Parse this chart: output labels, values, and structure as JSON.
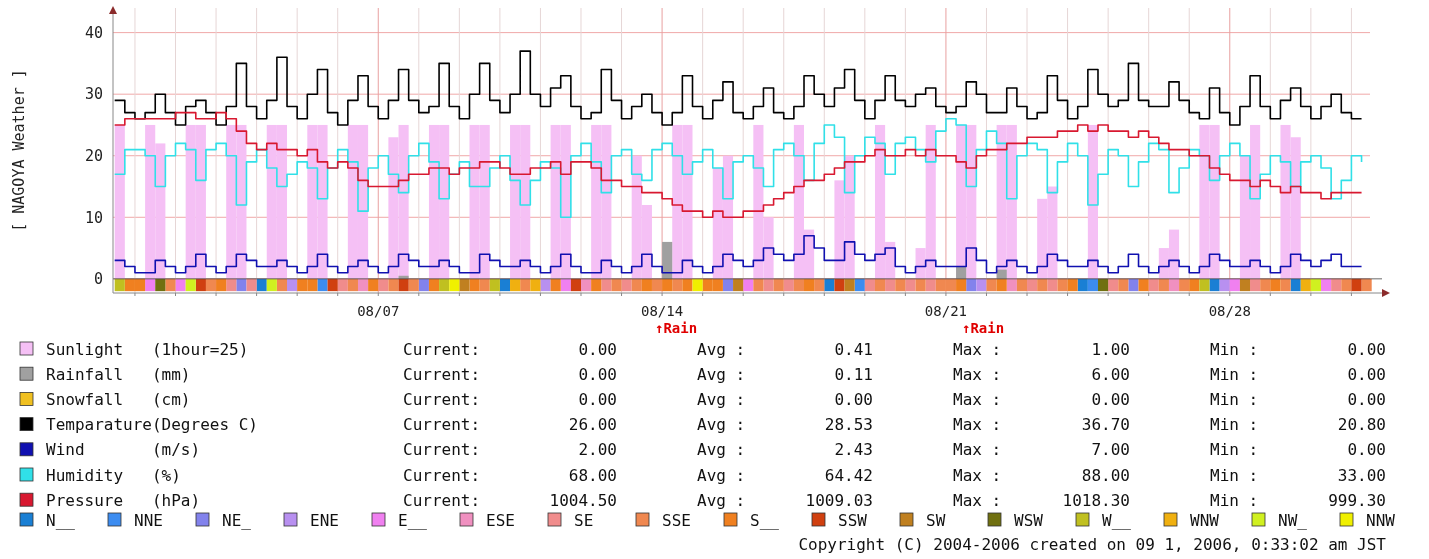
{
  "chart_data": {
    "type": "step",
    "ylabel": "[ NAGOYA Weather ]",
    "xlim": [
      "2006-07-31T11:00",
      "2006-08-31T11:00"
    ],
    "ylim": [
      -2.3,
      44
    ],
    "yticks": [
      0,
      10,
      20,
      30,
      40
    ],
    "xticks": [
      {
        "value": "2006-08-01",
        "label": null
      },
      {
        "value": "2006-08-02",
        "label": null
      },
      {
        "value": "2006-08-03",
        "label": null
      },
      {
        "value": "2006-08-04",
        "label": null
      },
      {
        "value": "2006-08-05",
        "label": null
      },
      {
        "value": "2006-08-06",
        "label": null
      },
      {
        "value": "2006-08-07",
        "label": "08/07"
      },
      {
        "value": "2006-08-08",
        "label": null
      },
      {
        "value": "2006-08-09",
        "label": null
      },
      {
        "value": "2006-08-10",
        "label": null
      },
      {
        "value": "2006-08-11",
        "label": null
      },
      {
        "value": "2006-08-12",
        "label": null
      },
      {
        "value": "2006-08-13",
        "label": null
      },
      {
        "value": "2006-08-14",
        "label": "08/14"
      },
      {
        "value": "2006-08-15",
        "label": null
      },
      {
        "value": "2006-08-16",
        "label": null
      },
      {
        "value": "2006-08-17",
        "label": null
      },
      {
        "value": "2006-08-18",
        "label": null
      },
      {
        "value": "2006-08-19",
        "label": null
      },
      {
        "value": "2006-08-20",
        "label": null
      },
      {
        "value": "2006-08-21",
        "label": "08/21"
      },
      {
        "value": "2006-08-22",
        "label": null
      },
      {
        "value": "2006-08-23",
        "label": null
      },
      {
        "value": "2006-08-24",
        "label": null
      },
      {
        "value": "2006-08-25",
        "label": null
      },
      {
        "value": "2006-08-26",
        "label": null
      },
      {
        "value": "2006-08-27",
        "label": null
      },
      {
        "value": "2006-08-28",
        "label": "08/28"
      },
      {
        "value": "2006-08-29",
        "label": null
      },
      {
        "value": "2006-08-30",
        "label": null
      },
      {
        "value": "2006-08-31",
        "label": null
      }
    ],
    "grid": true,
    "legend": "bottom",
    "x": [
      "2006-07-31T12:00",
      "2006-07-31T18:00",
      "2006-08-01T00:00",
      "2006-08-01T06:00",
      "2006-08-01T12:00",
      "2006-08-01T18:00",
      "2006-08-02T00:00",
      "2006-08-02T06:00",
      "2006-08-02T12:00",
      "2006-08-02T18:00",
      "2006-08-03T00:00",
      "2006-08-03T06:00",
      "2006-08-03T12:00",
      "2006-08-03T18:00",
      "2006-08-04T00:00",
      "2006-08-04T06:00",
      "2006-08-04T12:00",
      "2006-08-04T18:00",
      "2006-08-05T00:00",
      "2006-08-05T06:00",
      "2006-08-05T12:00",
      "2006-08-05T18:00",
      "2006-08-06T00:00",
      "2006-08-06T06:00",
      "2006-08-06T12:00",
      "2006-08-06T18:00",
      "2006-08-07T00:00",
      "2006-08-07T06:00",
      "2006-08-07T12:00",
      "2006-08-07T18:00",
      "2006-08-08T00:00",
      "2006-08-08T06:00",
      "2006-08-08T12:00",
      "2006-08-08T18:00",
      "2006-08-09T00:00",
      "2006-08-09T06:00",
      "2006-08-09T12:00",
      "2006-08-09T18:00",
      "2006-08-10T00:00",
      "2006-08-10T06:00",
      "2006-08-10T12:00",
      "2006-08-10T18:00",
      "2006-08-11T00:00",
      "2006-08-11T06:00",
      "2006-08-11T12:00",
      "2006-08-11T18:00",
      "2006-08-12T00:00",
      "2006-08-12T06:00",
      "2006-08-12T12:00",
      "2006-08-12T18:00",
      "2006-08-13T00:00",
      "2006-08-13T06:00",
      "2006-08-13T12:00",
      "2006-08-13T18:00",
      "2006-08-14T00:00",
      "2006-08-14T06:00",
      "2006-08-14T12:00",
      "2006-08-14T18:00",
      "2006-08-15T00:00",
      "2006-08-15T06:00",
      "2006-08-15T12:00",
      "2006-08-15T18:00",
      "2006-08-16T00:00",
      "2006-08-16T06:00",
      "2006-08-16T12:00",
      "2006-08-16T18:00",
      "2006-08-17T00:00",
      "2006-08-17T06:00",
      "2006-08-17T12:00",
      "2006-08-17T18:00",
      "2006-08-18T00:00",
      "2006-08-18T06:00",
      "2006-08-18T12:00",
      "2006-08-18T18:00",
      "2006-08-19T00:00",
      "2006-08-19T06:00",
      "2006-08-19T12:00",
      "2006-08-19T18:00",
      "2006-08-20T00:00",
      "2006-08-20T06:00",
      "2006-08-20T12:00",
      "2006-08-20T18:00",
      "2006-08-21T00:00",
      "2006-08-21T06:00",
      "2006-08-21T12:00",
      "2006-08-21T18:00",
      "2006-08-22T00:00",
      "2006-08-22T06:00",
      "2006-08-22T12:00",
      "2006-08-22T18:00",
      "2006-08-23T00:00",
      "2006-08-23T06:00",
      "2006-08-23T12:00",
      "2006-08-23T18:00",
      "2006-08-24T00:00",
      "2006-08-24T06:00",
      "2006-08-24T12:00",
      "2006-08-24T18:00",
      "2006-08-25T00:00",
      "2006-08-25T06:00",
      "2006-08-25T12:00",
      "2006-08-25T18:00",
      "2006-08-26T00:00",
      "2006-08-26T06:00",
      "2006-08-26T12:00",
      "2006-08-26T18:00",
      "2006-08-27T00:00",
      "2006-08-27T06:00",
      "2006-08-27T12:00",
      "2006-08-27T18:00",
      "2006-08-28T00:00",
      "2006-08-28T06:00",
      "2006-08-28T12:00",
      "2006-08-28T18:00",
      "2006-08-29T00:00",
      "2006-08-29T06:00",
      "2006-08-29T12:00",
      "2006-08-29T18:00",
      "2006-08-30T00:00",
      "2006-08-30T06:00",
      "2006-08-30T12:00",
      "2006-08-30T18:00",
      "2006-08-31T00:00",
      "2006-08-31T06:00"
    ],
    "series": [
      {
        "name": "Sunlight   (1hour=25)",
        "type": "bar",
        "color": "#f5c0f5",
        "values": [
          25,
          0,
          0,
          25,
          22,
          0,
          0,
          25,
          25,
          0,
          0,
          25,
          25,
          0,
          0,
          25,
          25,
          0,
          0,
          25,
          25,
          0,
          0,
          25,
          25,
          0,
          0,
          23,
          25,
          0,
          0,
          25,
          25,
          0,
          0,
          25,
          25,
          0,
          0,
          25,
          25,
          0,
          0,
          25,
          25,
          0,
          0,
          25,
          25,
          0,
          0,
          20,
          12,
          0,
          0,
          25,
          25,
          0,
          0,
          18,
          20,
          0,
          0,
          25,
          10,
          0,
          0,
          25,
          8,
          0,
          0,
          16,
          20,
          0,
          0,
          25,
          6,
          0,
          0,
          5,
          25,
          0,
          0,
          25,
          25,
          0,
          0,
          25,
          25,
          0,
          0,
          13,
          15,
          0,
          0,
          0,
          25,
          0,
          0,
          0,
          0,
          0,
          0,
          5,
          8,
          0,
          0,
          25,
          25,
          0,
          0,
          20,
          25,
          0,
          0,
          25,
          23,
          0,
          0,
          0,
          0,
          0,
          0,
          0
        ]
      },
      {
        "name": "Rainfall   (mm)",
        "type": "bar",
        "color": "#a0a0a0",
        "x": [
          "2006-08-07T12:00",
          "2006-08-14T00:00",
          "2006-08-21T06:00",
          "2006-08-22T06:00"
        ],
        "values": [
          0.5,
          6,
          2,
          1.5
        ]
      },
      {
        "name": "Snowfall   (cm)",
        "type": "bar",
        "color": "#f0c020",
        "values": [
          0,
          0,
          0,
          0,
          0,
          0,
          0,
          0,
          0,
          0,
          0,
          0,
          0,
          0,
          0,
          0,
          0,
          0,
          0,
          0,
          0,
          0,
          0,
          0,
          0,
          0,
          0,
          0,
          0,
          0,
          0,
          0,
          0,
          0,
          0,
          0,
          0,
          0,
          0,
          0,
          0,
          0,
          0,
          0,
          0,
          0,
          0,
          0,
          0,
          0,
          0,
          0,
          0,
          0,
          0,
          0,
          0,
          0,
          0,
          0,
          0,
          0,
          0,
          0,
          0,
          0,
          0,
          0,
          0,
          0,
          0,
          0,
          0,
          0,
          0,
          0,
          0,
          0,
          0,
          0,
          0,
          0,
          0,
          0,
          0,
          0,
          0,
          0,
          0,
          0,
          0,
          0,
          0,
          0,
          0,
          0,
          0,
          0,
          0,
          0,
          0,
          0,
          0,
          0,
          0,
          0,
          0,
          0,
          0,
          0,
          0,
          0,
          0,
          0,
          0,
          0,
          0,
          0,
          0,
          0,
          0,
          0,
          0,
          0
        ]
      },
      {
        "name": "Temparature(Degrees C)",
        "color": "#000000",
        "values": [
          29,
          27,
          26,
          27,
          30,
          27,
          25,
          28,
          29,
          27,
          25,
          28,
          35,
          28,
          26,
          29,
          36,
          28,
          26,
          30,
          34,
          27,
          25,
          29,
          33,
          28,
          26,
          29,
          34,
          29,
          27,
          28,
          35,
          28,
          26,
          30,
          35,
          29,
          27,
          30,
          37,
          30,
          28,
          31,
          33,
          28,
          26,
          27,
          34,
          29,
          26,
          28,
          30,
          27,
          25,
          27,
          33,
          28,
          26,
          29,
          32,
          27,
          26,
          28,
          31,
          27,
          26,
          28,
          33,
          30,
          28,
          31,
          34,
          29,
          26,
          29,
          33,
          29,
          28,
          30,
          31,
          28,
          27,
          28,
          32,
          30,
          27,
          27,
          31,
          28,
          26,
          27,
          33,
          29,
          26,
          28,
          34,
          30,
          28,
          29,
          35,
          29,
          28,
          28,
          32,
          29,
          27,
          26,
          31,
          27,
          25,
          28,
          33,
          28,
          26,
          29,
          31,
          28,
          26,
          28,
          30,
          27,
          26,
          26
        ]
      },
      {
        "name": "Wind       (m/s)",
        "color": "#1010b0",
        "values": [
          3,
          2,
          1,
          1,
          3,
          2,
          1,
          2,
          4,
          2,
          1,
          2,
          4,
          3,
          2,
          2,
          3,
          2,
          1,
          2,
          4,
          2,
          1,
          2,
          3,
          2,
          1,
          2,
          4,
          3,
          2,
          2,
          3,
          2,
          1,
          1,
          4,
          3,
          2,
          2,
          3,
          2,
          1,
          2,
          4,
          2,
          1,
          1,
          3,
          2,
          1,
          2,
          4,
          2,
          1,
          1,
          3,
          2,
          1,
          2,
          4,
          3,
          2,
          3,
          5,
          4,
          3,
          4,
          7,
          5,
          3,
          3,
          6,
          4,
          3,
          4,
          5,
          2,
          1,
          2,
          3,
          2,
          2,
          2,
          5,
          3,
          1,
          2,
          3,
          2,
          1,
          2,
          4,
          3,
          2,
          2,
          3,
          2,
          1,
          2,
          4,
          2,
          1,
          2,
          3,
          2,
          1,
          2,
          4,
          3,
          2,
          2,
          3,
          2,
          1,
          2,
          4,
          3,
          2,
          3,
          4,
          2,
          2,
          2
        ]
      },
      {
        "name": "Humidity   (%)",
        "color": "#30e0e8",
        "values": [
          17,
          21,
          21,
          20,
          15,
          20,
          22,
          21,
          16,
          21,
          22,
          20,
          12,
          19,
          21,
          18,
          15,
          17,
          19,
          18,
          13,
          18,
          21,
          19,
          11,
          18,
          20,
          17,
          14,
          20,
          22,
          19,
          13,
          17,
          19,
          15,
          15,
          18,
          20,
          16,
          12,
          16,
          19,
          18,
          10,
          20,
          22,
          19,
          14,
          20,
          21,
          17,
          16,
          21,
          22,
          20,
          17,
          19,
          21,
          18,
          13,
          19,
          20,
          18,
          15,
          21,
          22,
          20,
          16,
          22,
          25,
          23,
          14,
          20,
          23,
          22,
          17,
          22,
          23,
          21,
          19,
          24,
          26,
          25,
          15,
          21,
          24,
          22,
          13,
          20,
          22,
          21,
          14,
          19,
          22,
          20,
          12,
          17,
          21,
          20,
          15,
          19,
          22,
          21,
          14,
          18,
          21,
          20,
          16,
          20,
          22,
          20,
          13,
          17,
          20,
          19,
          15,
          19,
          20,
          18,
          13,
          16,
          20,
          19
        ]
      },
      {
        "name": "Pressure   (hPa)",
        "color": "#d81830",
        "values": [
          25,
          26,
          26,
          26,
          26,
          26,
          27,
          27,
          26,
          26,
          27,
          26,
          24,
          22,
          21,
          22,
          21,
          21,
          20,
          21,
          19,
          18,
          19,
          18,
          16,
          15,
          15,
          15,
          16,
          17,
          17,
          18,
          18,
          17,
          18,
          18,
          19,
          19,
          18,
          17,
          17,
          18,
          18,
          19,
          17,
          19,
          19,
          18,
          16,
          16,
          15,
          15,
          14,
          14,
          13,
          12,
          11,
          11,
          10,
          11,
          10,
          10,
          11,
          11,
          12,
          13,
          14,
          15,
          16,
          16,
          17,
          18,
          19,
          19,
          20,
          21,
          20,
          20,
          21,
          20,
          21,
          20,
          20,
          19,
          18,
          20,
          21,
          21,
          22,
          22,
          23,
          23,
          23,
          24,
          24,
          25,
          24,
          25,
          24,
          24,
          23,
          24,
          23,
          22,
          21,
          21,
          20,
          20,
          18,
          17,
          16,
          16,
          15,
          16,
          15,
          14,
          15,
          14,
          14,
          13,
          14,
          14,
          14,
          14
        ]
      },
      {
        "name": "N__",
        "type": "bar",
        "color": "#1a7fd4",
        "x": [
          "2006-08-04T00:00",
          "2006-08-10T00:00",
          "2006-08-18T00:00",
          "2006-08-24T06:00",
          "2006-08-27T12:00",
          "2006-08-29T12:00"
        ],
        "values": [
          -2,
          -2,
          -2,
          -2,
          -2,
          -2
        ]
      },
      {
        "name": "NNE",
        "type": "bar",
        "color": "#3c8cf0",
        "x": [
          "2006-08-05T12:00",
          "2006-08-18T18:00",
          "2006-08-24T12:00"
        ],
        "values": [
          -2,
          -2,
          -2
        ]
      },
      {
        "name": "NE_",
        "type": "bar",
        "color": "#8282ec",
        "x": [
          "2006-08-03T12:00",
          "2006-08-08T00:00",
          "2006-08-15T12:00",
          "2006-08-21T12:00",
          "2006-08-25T12:00"
        ],
        "values": [
          -2,
          -2,
          -2,
          -2,
          -2
        ]
      },
      {
        "name": "ENE",
        "type": "bar",
        "color": "#b890f0",
        "x": [
          "2006-08-04T18:00",
          "2006-08-11T00:00",
          "2006-08-21T18:00",
          "2006-08-27T18:00"
        ],
        "values": [
          -2,
          -2,
          -2,
          -2
        ]
      },
      {
        "name": "E__",
        "type": "bar",
        "color": "#f080f0",
        "x": [
          "2006-08-01T06:00",
          "2006-08-02T00:00",
          "2006-08-11T12:00",
          "2006-08-16T00:00",
          "2006-08-28T00:00",
          "2006-08-30T06:00"
        ],
        "values": [
          -2,
          -2,
          -2,
          -2,
          -2,
          -2
        ]
      },
      {
        "name": "ESE",
        "type": "bar",
        "color": "#f090c0",
        "x": [
          "2006-08-06T12:00",
          "2006-08-12T00:00",
          "2006-08-22T12:00",
          "2006-08-26T12:00"
        ],
        "values": [
          -2,
          -2,
          -2,
          -2
        ]
      },
      {
        "name": "SE",
        "type": "bar",
        "color": "#f08c8c",
        "x": [
          "2006-08-03T06:00",
          "2006-08-03T18:00",
          "2006-08-06T00:00",
          "2006-08-07T00:00",
          "2006-08-12T12:00",
          "2006-08-13T00:00",
          "2006-08-16T12:00",
          "2006-08-17T00:00",
          "2006-08-19T00:00",
          "2006-08-19T12:00",
          "2006-08-20T00:00",
          "2006-08-20T12:00",
          "2006-08-23T00:00",
          "2006-08-23T12:00",
          "2006-08-25T00:00",
          "2006-08-26T00:00",
          "2006-08-28T12:00",
          "2006-08-30T12:00"
        ],
        "values": [
          -2,
          -2,
          -2,
          -2,
          -2,
          -2,
          -2,
          -2,
          -2,
          -2,
          -2,
          -2,
          -2,
          -2,
          -2,
          -2,
          -2,
          -2
        ]
      },
      {
        "name": "SSE",
        "type": "bar",
        "color": "#f08850",
        "x": [
          "2006-08-01T18:00",
          "2006-08-02T18:00",
          "2006-08-04T12:00",
          "2006-08-06T06:00",
          "2006-08-07T06:00",
          "2006-08-07T18:00",
          "2006-08-09T12:00",
          "2006-08-10T12:00",
          "2006-08-12T18:00",
          "2006-08-13T06:00",
          "2006-08-13T18:00",
          "2006-08-14T06:00",
          "2006-08-16T06:00",
          "2006-08-16T18:00",
          "2006-08-17T06:00",
          "2006-08-17T18:00",
          "2006-08-19T06:00",
          "2006-08-19T18:00",
          "2006-08-20T06:00",
          "2006-08-20T18:00",
          "2006-08-21T00:00",
          "2006-08-22T00:00",
          "2006-08-22T18:00",
          "2006-08-23T06:00",
          "2006-08-23T18:00",
          "2006-08-25T06:00",
          "2006-08-26T06:00",
          "2006-08-26T18:00",
          "2006-08-28T18:00",
          "2006-08-29T06:00",
          "2006-08-30T18:00",
          "2006-08-31T06:00"
        ],
        "values": [
          -2,
          -2,
          -2,
          -2,
          -2,
          -2,
          -2,
          -2,
          -2,
          -2,
          -2,
          -2,
          -2,
          -2,
          -2,
          -2,
          -2,
          -2,
          -2,
          -2,
          -2,
          -2,
          -2,
          -2,
          -2,
          -2,
          -2,
          -2,
          -2,
          -2,
          -2,
          -2
        ]
      },
      {
        "name": "S__",
        "type": "bar",
        "color": "#f08020",
        "x": [
          "2006-07-31T18:00",
          "2006-08-01T00:00",
          "2006-08-03T00:00",
          "2006-08-05T00:00",
          "2006-08-05T06:00",
          "2006-08-06T18:00",
          "2006-08-08T06:00",
          "2006-08-09T06:00",
          "2006-08-11T06:00",
          "2006-08-12T06:00",
          "2006-08-13T12:00",
          "2006-08-14T00:00",
          "2006-08-14T12:00",
          "2006-08-15T00:00",
          "2006-08-15T06:00",
          "2006-08-17T12:00",
          "2006-08-21T06:00",
          "2006-08-22T06:00",
          "2006-08-24T00:00",
          "2006-08-25T18:00",
          "2006-08-27T00:00",
          "2006-08-29T00:00"
        ],
        "values": [
          -2,
          -2,
          -2,
          -2,
          -2,
          -2,
          -2,
          -2,
          -2,
          -2,
          -2,
          -2,
          -2,
          -2,
          -2,
          -2,
          -2,
          -2,
          -2,
          -2,
          -2,
          -2
        ]
      },
      {
        "name": "SSW",
        "type": "bar",
        "color": "#d04010",
        "x": [
          "2006-08-02T12:00",
          "2006-08-05T18:00",
          "2006-08-07T12:00",
          "2006-08-11T18:00",
          "2006-08-18T06:00",
          "2006-08-31T00:00"
        ],
        "values": [
          -2,
          -2,
          -2,
          -2,
          -2,
          -2
        ]
      },
      {
        "name": "SW",
        "type": "bar",
        "color": "#c08020",
        "x": [
          "2006-08-09T00:00",
          "2006-08-15T18:00",
          "2006-08-18T12:00",
          "2006-08-28T06:00"
        ],
        "values": [
          -2,
          -2,
          -2,
          -2
        ]
      },
      {
        "name": "WSW",
        "type": "bar",
        "color": "#707010",
        "x": [
          "2006-08-01T12:00",
          "2006-08-24T18:00"
        ],
        "values": [
          -2,
          -2
        ]
      },
      {
        "name": "W__",
        "type": "bar",
        "color": "#c0c020",
        "x": [
          "2006-07-31T12:00",
          "2006-08-08T12:00",
          "2006-08-09T18:00",
          "2006-08-27T06:00"
        ],
        "values": [
          -2,
          -2,
          -2,
          -2
        ]
      },
      {
        "name": "WNW",
        "type": "bar",
        "color": "#f0b010",
        "x": [
          "2006-08-10T06:00",
          "2006-08-10T18:00",
          "2006-08-29T18:00"
        ],
        "values": [
          -2,
          -2,
          -2
        ]
      },
      {
        "name": "NW_",
        "type": "bar",
        "color": "#d0f020",
        "x": [
          "2006-08-02T06:00",
          "2006-08-04T06:00",
          "2006-08-30T00:00"
        ],
        "values": [
          -2,
          -2,
          -2
        ]
      },
      {
        "name": "NNW",
        "type": "bar",
        "color": "#f0f000",
        "x": [
          "2006-08-08T18:00",
          "2006-08-14T18:00"
        ],
        "values": [
          -2,
          -2
        ]
      }
    ],
    "annotations": [
      "Current: 0.00",
      "Avg : 0.41",
      "Max : 1.00",
      "Min : 0.00",
      "Current: 0.00",
      "Avg : 0.11",
      "Max : 6.00",
      "Min : 0.00",
      "Current: 0.00",
      "Avg : 0.00",
      "Max : 0.00",
      "Min : 0.00",
      "Current: 26.00",
      "Avg : 28.53",
      "Max : 36.70",
      "Min : 20.80",
      "Current: 2.00",
      "Avg : 2.43",
      "Max : 7.00",
      "Min : 0.00",
      "Current: 68.00",
      "Avg : 64.42",
      "Max : 88.00",
      "Min : 33.00",
      "Current: 1004.50",
      "Avg : 1009.03",
      "Max : 1018.30",
      "Min : 999.30",
      "↑Rain",
      "↑Rain",
      "Copyright (C) 2004-2006 created on 09 1, 2006, 0:33:02 am JST"
    ]
  }
}
